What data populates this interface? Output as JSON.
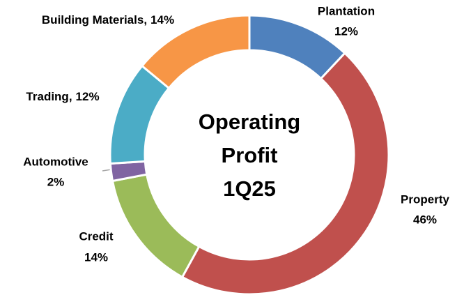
{
  "chart_data": {
    "type": "donut",
    "center_label": [
      "Operating",
      "Profit",
      "1Q25"
    ],
    "categories": [
      "Plantation",
      "Property",
      "Credit",
      "Automotive",
      "Trading,",
      "Building Materials,"
    ],
    "values": [
      12,
      46,
      14,
      2,
      12,
      14
    ],
    "value_labels": [
      "12%",
      "46%",
      "14%",
      "2%",
      "12%",
      "14%"
    ],
    "colors": [
      "#4f81bd",
      "#c0504d",
      "#9bbb59",
      "#8064a2",
      "#4bacc6",
      "#f79646"
    ]
  }
}
